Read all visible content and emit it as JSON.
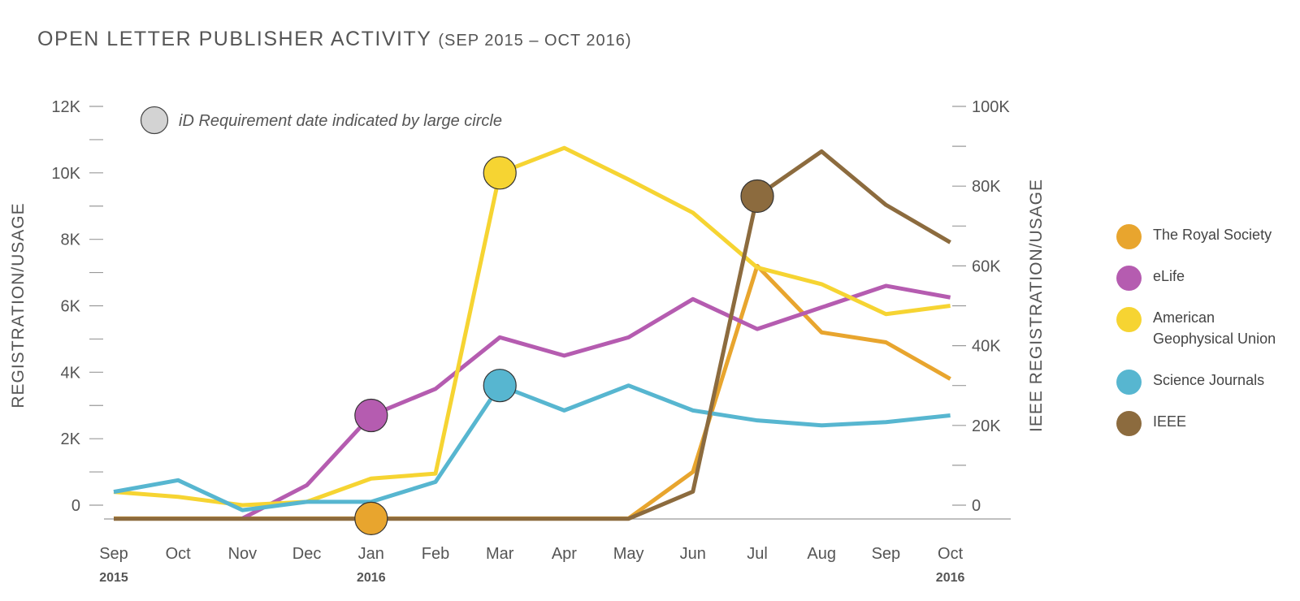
{
  "title": "OPEN LETTER PUBLISHER ACTIVITY",
  "subtitle": "(SEP 2015 – OCT 2016)",
  "chart_data": {
    "type": "line",
    "categories": [
      "Sep",
      "Oct",
      "Nov",
      "Dec",
      "Jan",
      "Feb",
      "Mar",
      "Apr",
      "May",
      "Jun",
      "Jul",
      "Aug",
      "Sep",
      "Oct"
    ],
    "year_labels": [
      {
        "index": 0,
        "label": "2015"
      },
      {
        "index": 4,
        "label": "2016"
      },
      {
        "index": 13,
        "label": "2016"
      }
    ],
    "ylabel": "REGISTRATION/USAGE",
    "y2label": "IEEE REGISTRATION/USAGE",
    "ylim": [
      0,
      12000
    ],
    "y2lim": [
      0,
      100000
    ],
    "y_ticks": [
      "0",
      "2K",
      "4K",
      "6K",
      "8K",
      "10K",
      "12K"
    ],
    "y2_ticks": [
      "0",
      "20K",
      "40K",
      "60K",
      "80K",
      "100K"
    ],
    "annotation": "iD Requirement date indicated by large circle",
    "annotation_color": "#d3d3d3",
    "grid": false,
    "legend_position": "right",
    "series": [
      {
        "name": "The Royal Society",
        "color": "#e8a52e",
        "axis": "left",
        "values": [
          -400,
          -400,
          -400,
          -400,
          -400,
          -400,
          -400,
          -400,
          -400,
          1000,
          7200,
          5200,
          4900,
          3800
        ],
        "requirement_index": 4
      },
      {
        "name": "eLife",
        "color": "#b55cb0",
        "axis": "left",
        "values": [
          null,
          null,
          -400,
          600,
          2700,
          3500,
          5050,
          4500,
          5050,
          6200,
          5300,
          5950,
          6600,
          6250
        ],
        "requirement_index": 4
      },
      {
        "name": "American Geophysical Union",
        "color": "#f6d432",
        "axis": "left",
        "values": [
          400,
          250,
          0,
          100,
          800,
          950,
          10000,
          10750,
          9800,
          8800,
          7150,
          6650,
          5750,
          6000
        ],
        "requirement_index": 6
      },
      {
        "name": "Science Journals",
        "color": "#57b6d0",
        "axis": "left",
        "values": [
          400,
          750,
          -150,
          100,
          100,
          700,
          3600,
          2850,
          3600,
          2850,
          2550,
          2400,
          2500,
          2700
        ],
        "requirement_index": 6
      },
      {
        "name": "IEEE",
        "color": "#8c6b3e",
        "axis": "right",
        "values": [
          -3400,
          -3400,
          -3400,
          -3400,
          -3400,
          -3400,
          -3400,
          -3400,
          -3400,
          3400,
          77500,
          88700,
          75300,
          65900
        ],
        "requirement_index": 10
      }
    ]
  }
}
